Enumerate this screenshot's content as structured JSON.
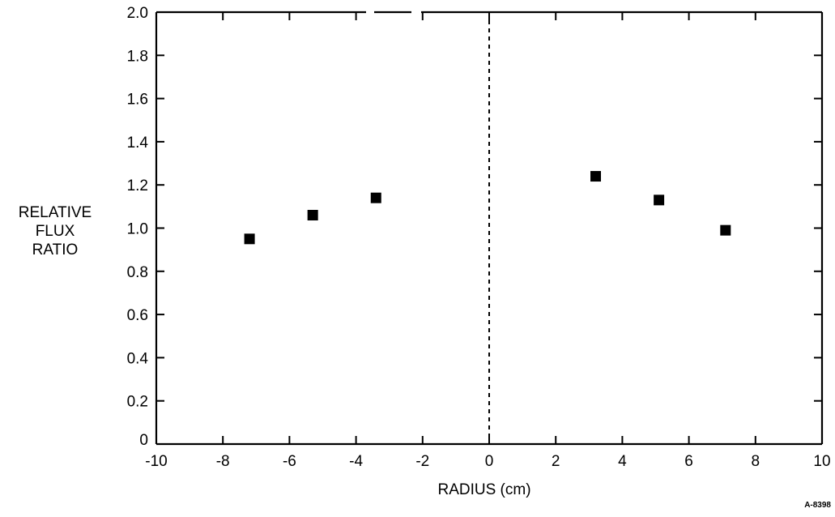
{
  "chart_data": {
    "type": "scatter",
    "title": "",
    "xlabel": "RADIUS (cm)",
    "ylabel": [
      "RELATIVE",
      "FLUX",
      "RATIO"
    ],
    "xlim": [
      -10,
      10
    ],
    "ylim": [
      0,
      2.0
    ],
    "x_ticks": [
      -10,
      -8,
      -6,
      -4,
      -2,
      0,
      2,
      4,
      6,
      8,
      10
    ],
    "x_tick_labels": [
      "-10",
      "-8",
      "-6",
      "-4",
      "-2",
      "0",
      "2",
      "4",
      "6",
      "8",
      "10"
    ],
    "y_ticks": [
      0,
      0.2,
      0.4,
      0.6,
      0.8,
      1.0,
      1.2,
      1.4,
      1.6,
      1.8,
      2.0
    ],
    "y_tick_labels": [
      "0",
      "0.2",
      "0.4",
      "0.6",
      "0.8",
      "1.0",
      "1.2",
      "1.4",
      "1.6",
      "1.8",
      "2.0"
    ],
    "reference_line_x": 0,
    "grid": false,
    "legend": "none",
    "marker": "square",
    "marker_color": "#000000",
    "series": [
      {
        "points": [
          {
            "x": -7.2,
            "y": 0.95
          },
          {
            "x": -5.3,
            "y": 1.06
          },
          {
            "x": -3.4,
            "y": 1.14
          },
          {
            "x": 3.2,
            "y": 1.24
          },
          {
            "x": 5.1,
            "y": 1.13
          },
          {
            "x": 7.1,
            "y": 0.99
          }
        ]
      }
    ]
  },
  "figure_id": "A-8398"
}
